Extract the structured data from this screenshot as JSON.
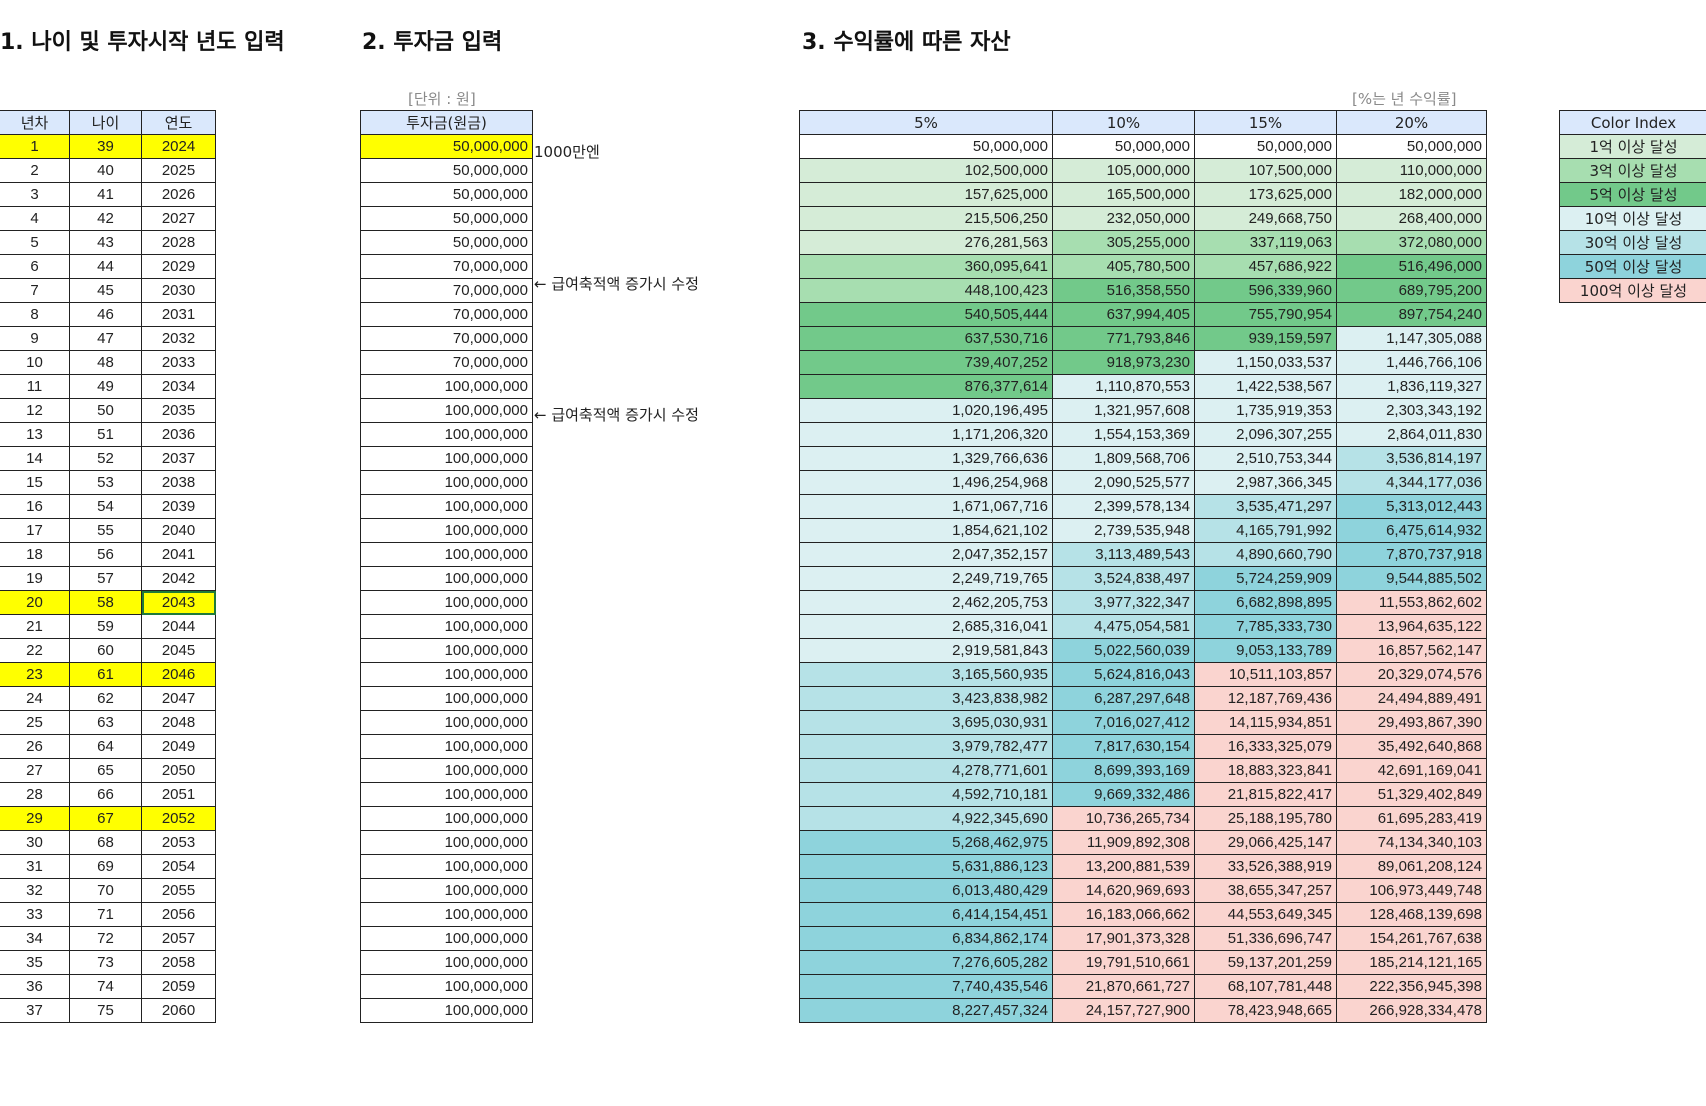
{
  "headings": {
    "section1": "1. 나이 및 투자시작 년도 입력",
    "section2": "2. 투자금 입력",
    "section3": "3. 수익률에 따른 자산"
  },
  "notes": {
    "unit": "[단위 : 원]",
    "rate": "[%는 년 수익률]"
  },
  "table1": {
    "headers": [
      "년차",
      "나이",
      "연도"
    ],
    "rows": [
      [
        "1",
        "39",
        "2024"
      ],
      [
        "2",
        "40",
        "2025"
      ],
      [
        "3",
        "41",
        "2026"
      ],
      [
        "4",
        "42",
        "2027"
      ],
      [
        "5",
        "43",
        "2028"
      ],
      [
        "6",
        "44",
        "2029"
      ],
      [
        "7",
        "45",
        "2030"
      ],
      [
        "8",
        "46",
        "2031"
      ],
      [
        "9",
        "47",
        "2032"
      ],
      [
        "10",
        "48",
        "2033"
      ],
      [
        "11",
        "49",
        "2034"
      ],
      [
        "12",
        "50",
        "2035"
      ],
      [
        "13",
        "51",
        "2036"
      ],
      [
        "14",
        "52",
        "2037"
      ],
      [
        "15",
        "53",
        "2038"
      ],
      [
        "16",
        "54",
        "2039"
      ],
      [
        "17",
        "55",
        "2040"
      ],
      [
        "18",
        "56",
        "2041"
      ],
      [
        "19",
        "57",
        "2042"
      ],
      [
        "20",
        "58",
        "2043"
      ],
      [
        "21",
        "59",
        "2044"
      ],
      [
        "22",
        "60",
        "2045"
      ],
      [
        "23",
        "61",
        "2046"
      ],
      [
        "24",
        "62",
        "2047"
      ],
      [
        "25",
        "63",
        "2048"
      ],
      [
        "26",
        "64",
        "2049"
      ],
      [
        "27",
        "65",
        "2050"
      ],
      [
        "28",
        "66",
        "2051"
      ],
      [
        "29",
        "67",
        "2052"
      ],
      [
        "30",
        "68",
        "2053"
      ],
      [
        "31",
        "69",
        "2054"
      ],
      [
        "32",
        "70",
        "2055"
      ],
      [
        "33",
        "71",
        "2056"
      ],
      [
        "34",
        "72",
        "2057"
      ],
      [
        "35",
        "73",
        "2058"
      ],
      [
        "36",
        "74",
        "2059"
      ],
      [
        "37",
        "75",
        "2060"
      ]
    ]
  },
  "table2": {
    "header": "투자금(원금)",
    "values": [
      "50,000,000",
      "50,000,000",
      "50,000,000",
      "50,000,000",
      "50,000,000",
      "70,000,000",
      "70,000,000",
      "70,000,000",
      "70,000,000",
      "70,000,000",
      "100,000,000",
      "100,000,000",
      "100,000,000",
      "100,000,000",
      "100,000,000",
      "100,000,000",
      "100,000,000",
      "100,000,000",
      "100,000,000",
      "100,000,000",
      "100,000,000",
      "100,000,000",
      "100,000,000",
      "100,000,000",
      "100,000,000",
      "100,000,000",
      "100,000,000",
      "100,000,000",
      "100,000,000",
      "100,000,000",
      "100,000,000",
      "100,000,000",
      "100,000,000",
      "100,000,000",
      "100,000,000",
      "100,000,000",
      "100,000,000"
    ],
    "annotations": {
      "row1": "1000만엔",
      "row6": "← 급여축적액 증가시 수정",
      "row11": "← 급여축적액 증가시 수정"
    }
  },
  "table3": {
    "headers": [
      "5%",
      "10%",
      "15%",
      "20%"
    ],
    "rows": [
      [
        "50,000,000",
        "50,000,000",
        "50,000,000",
        "50,000,000"
      ],
      [
        "102,500,000",
        "105,000,000",
        "107,500,000",
        "110,000,000"
      ],
      [
        "157,625,000",
        "165,500,000",
        "173,625,000",
        "182,000,000"
      ],
      [
        "215,506,250",
        "232,050,000",
        "249,668,750",
        "268,400,000"
      ],
      [
        "276,281,563",
        "305,255,000",
        "337,119,063",
        "372,080,000"
      ],
      [
        "360,095,641",
        "405,780,500",
        "457,686,922",
        "516,496,000"
      ],
      [
        "448,100,423",
        "516,358,550",
        "596,339,960",
        "689,795,200"
      ],
      [
        "540,505,444",
        "637,994,405",
        "755,790,954",
        "897,754,240"
      ],
      [
        "637,530,716",
        "771,793,846",
        "939,159,597",
        "1,147,305,088"
      ],
      [
        "739,407,252",
        "918,973,230",
        "1,150,033,537",
        "1,446,766,106"
      ],
      [
        "876,377,614",
        "1,110,870,553",
        "1,422,538,567",
        "1,836,119,327"
      ],
      [
        "1,020,196,495",
        "1,321,957,608",
        "1,735,919,353",
        "2,303,343,192"
      ],
      [
        "1,171,206,320",
        "1,554,153,369",
        "2,096,307,255",
        "2,864,011,830"
      ],
      [
        "1,329,766,636",
        "1,809,568,706",
        "2,510,753,344",
        "3,536,814,197"
      ],
      [
        "1,496,254,968",
        "2,090,525,577",
        "2,987,366,345",
        "4,344,177,036"
      ],
      [
        "1,671,067,716",
        "2,399,578,134",
        "3,535,471,297",
        "5,313,012,443"
      ],
      [
        "1,854,621,102",
        "2,739,535,948",
        "4,165,791,992",
        "6,475,614,932"
      ],
      [
        "2,047,352,157",
        "3,113,489,543",
        "4,890,660,790",
        "7,870,737,918"
      ],
      [
        "2,249,719,765",
        "3,524,838,497",
        "5,724,259,909",
        "9,544,885,502"
      ],
      [
        "2,462,205,753",
        "3,977,322,347",
        "6,682,898,895",
        "11,553,862,602"
      ],
      [
        "2,685,316,041",
        "4,475,054,581",
        "7,785,333,730",
        "13,964,635,122"
      ],
      [
        "2,919,581,843",
        "5,022,560,039",
        "9,053,133,789",
        "16,857,562,147"
      ],
      [
        "3,165,560,935",
        "5,624,816,043",
        "10,511,103,857",
        "20,329,074,576"
      ],
      [
        "3,423,838,982",
        "6,287,297,648",
        "12,187,769,436",
        "24,494,889,491"
      ],
      [
        "3,695,030,931",
        "7,016,027,412",
        "14,115,934,851",
        "29,493,867,390"
      ],
      [
        "3,979,782,477",
        "7,817,630,154",
        "16,333,325,079",
        "35,492,640,868"
      ],
      [
        "4,278,771,601",
        "8,699,393,169",
        "18,883,323,841",
        "42,691,169,041"
      ],
      [
        "4,592,710,181",
        "9,669,332,486",
        "21,815,822,417",
        "51,329,402,849"
      ],
      [
        "4,922,345,690",
        "10,736,265,734",
        "25,188,195,780",
        "61,695,283,419"
      ],
      [
        "5,268,462,975",
        "11,909,892,308",
        "29,066,425,147",
        "74,134,340,103"
      ],
      [
        "5,631,886,123",
        "13,200,881,539",
        "33,526,388,919",
        "89,061,208,124"
      ],
      [
        "6,013,480,429",
        "14,620,969,693",
        "38,655,347,257",
        "106,973,449,748"
      ],
      [
        "6,414,154,451",
        "16,183,066,662",
        "44,553,649,345",
        "128,468,139,698"
      ],
      [
        "6,834,862,174",
        "17,901,373,328",
        "51,336,696,747",
        "154,261,767,638"
      ],
      [
        "7,276,605,282",
        "19,791,510,661",
        "59,137,201,259",
        "185,214,121,165"
      ],
      [
        "7,740,435,546",
        "21,870,661,727",
        "68,107,781,448",
        "222,356,945,398"
      ],
      [
        "8,227,457,324",
        "24,157,727,900",
        "78,423,948,665",
        "266,928,334,478"
      ]
    ]
  },
  "legend": {
    "header": "Color Index",
    "items": [
      {
        "label": "1억 이상 달성",
        "color": "#d5ecd7"
      },
      {
        "label": "3억 이상 달성",
        "color": "#a7deb0"
      },
      {
        "label": "5억 이상 달성",
        "color": "#72c98a"
      },
      {
        "label": "10억 이상 달성",
        "color": "#dcf0f2"
      },
      {
        "label": "30억 이상 달성",
        "color": "#b6e2e7"
      },
      {
        "label": "50억 이상 달성",
        "color": "#8ed3dc"
      },
      {
        "label": "100억 이상 달성",
        "color": "#fad4cf"
      }
    ]
  },
  "highlights": {
    "yellow": "#ffff00",
    "header_blue": "#dae8fc",
    "highlighted_years": [
      "1",
      "20",
      "23",
      "29"
    ],
    "selected_cell": "2043"
  }
}
